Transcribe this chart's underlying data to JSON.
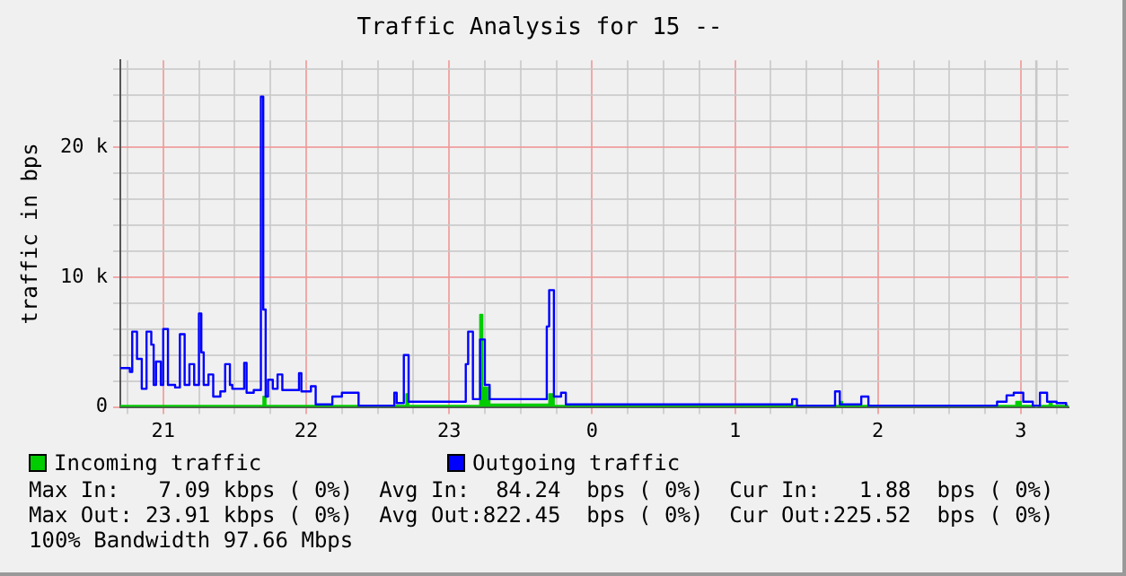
{
  "chart_data": {
    "type": "line",
    "title": "Traffic Analysis for 15 --",
    "ylabel": "traffic in bps",
    "xlim": [
      "--01-01T20:42",
      "--01-02T03:20"
    ],
    "xticks": [
      {
        "value": "--01-01T20:45",
        "label": null
      },
      {
        "value": "--01-01T21:00",
        "label": "21"
      },
      {
        "value": "--01-01T21:15",
        "label": null
      },
      {
        "value": "--01-01T21:30",
        "label": null
      },
      {
        "value": "--01-01T21:45",
        "label": null
      },
      {
        "value": "--01-01T22:00",
        "label": "22"
      },
      {
        "value": "--01-01T22:15",
        "label": null
      },
      {
        "value": "--01-01T22:30",
        "label": null
      },
      {
        "value": "--01-01T22:45",
        "label": null
      },
      {
        "value": "--01-01T23:00",
        "label": "23"
      },
      {
        "value": "--01-01T23:15",
        "label": null
      },
      {
        "value": "--01-01T23:30",
        "label": null
      },
      {
        "value": "--01-01T23:45",
        "label": null
      },
      {
        "value": "--01-02T00:00",
        "label": "0"
      },
      {
        "value": "--01-02T00:15",
        "label": null
      },
      {
        "value": "--01-02T00:30",
        "label": null
      },
      {
        "value": "--01-02T00:45",
        "label": null
      },
      {
        "value": "--01-02T01:00",
        "label": "1"
      },
      {
        "value": "--01-02T01:15",
        "label": null
      },
      {
        "value": "--01-02T01:30",
        "label": null
      },
      {
        "value": "--01-02T01:45",
        "label": null
      },
      {
        "value": "--01-02T02:00",
        "label": "2"
      },
      {
        "value": "--01-02T02:15",
        "label": null
      },
      {
        "value": "--01-02T02:30",
        "label": null
      },
      {
        "value": "--01-02T02:45",
        "label": null
      },
      {
        "value": "--01-02T03:00",
        "label": "3"
      },
      {
        "value": "--01-02T03:15",
        "label": null
      }
    ],
    "ylim": [
      0,
      26700
    ],
    "yticks": [
      0,
      {
        "value": 2000,
        "label": null
      },
      {
        "value": 4000,
        "label": null
      },
      {
        "value": 6000,
        "label": null
      },
      {
        "value": 8000,
        "label": null
      },
      {
        "value": 10000,
        "label": "10 k"
      },
      {
        "value": 12000,
        "label": null
      },
      {
        "value": 14000,
        "label": null
      },
      {
        "value": 16000,
        "label": null
      },
      {
        "value": 18000,
        "label": null
      },
      {
        "value": 20000,
        "label": "20 k"
      },
      {
        "value": 22000,
        "label": null
      },
      {
        "value": 24000,
        "label": null
      },
      {
        "value": 26000,
        "label": null
      }
    ],
    "grid": true,
    "legend": "bottom",
    "marker": "none",
    "line_style": "solid",
    "bands": [
      {
        "axis": "x",
        "from": "--01-02T03:06",
        "to": "--01-02T03:07",
        "color": "#c8c8c8"
      }
    ],
    "series": [
      {
        "name": "Incoming traffic",
        "color": "#00cc00",
        "type": "area",
        "x": [
          "--01-01T20:42",
          "--01-01T21:41",
          "--01-01T21:42",
          "--01-01T21:43",
          "--01-01T22:41",
          "--01-01T22:42",
          "--01-01T22:43",
          "--01-01T23:10",
          "--01-01T23:13",
          "--01-01T23:14",
          "--01-01T23:17",
          "--01-01T23:42",
          "--01-01T23:44",
          "--01-02T01:44",
          "--01-02T01:45",
          "--01-02T02:58",
          "--01-02T03:00",
          "--01-02T03:12",
          "--01-02T03:13",
          "--01-02T03:20"
        ],
        "values": [
          100,
          100,
          800,
          100,
          100,
          1000,
          100,
          100,
          7100,
          1500,
          200,
          1000,
          100,
          400,
          100,
          400,
          100,
          300,
          100,
          100
        ]
      },
      {
        "name": "Outgoing traffic",
        "color": "#0000ff",
        "type": "step",
        "x": [
          "--01-01T20:42",
          "--01-01T20:46",
          "--01-01T20:47",
          "--01-01T20:49",
          "--01-01T20:51",
          "--01-01T20:53",
          "--01-01T20:55",
          "--01-01T20:56",
          "--01-01T20:57",
          "--01-01T20:59",
          "--01-01T21:00",
          "--01-01T21:02",
          "--01-01T21:05",
          "--01-01T21:07",
          "--01-01T21:09",
          "--01-01T21:11",
          "--01-01T21:13",
          "--01-01T21:15",
          "--01-01T21:16",
          "--01-01T21:17",
          "--01-01T21:19",
          "--01-01T21:21",
          "--01-01T21:24",
          "--01-01T21:26",
          "--01-01T21:28",
          "--01-01T21:29",
          "--01-01T21:34",
          "--01-01T21:35",
          "--01-01T21:38",
          "--01-01T21:41",
          "--01-01T21:42",
          "--01-01T21:43",
          "--01-01T21:44",
          "--01-01T21:46",
          "--01-01T21:48",
          "--01-01T21:50",
          "--01-01T21:57",
          "--01-01T21:58",
          "--01-01T22:02",
          "--01-01T22:04",
          "--01-01T22:11",
          "--01-01T22:15",
          "--01-01T22:22",
          "--01-01T22:37",
          "--01-01T22:38",
          "--01-01T22:41",
          "--01-01T22:43",
          "--01-01T23:07",
          "--01-01T23:08",
          "--01-01T23:10",
          "--01-01T23:13",
          "--01-01T23:15",
          "--01-01T23:17",
          "--01-01T23:41",
          "--01-01T23:42",
          "--01-01T23:44",
          "--01-01T23:47",
          "--01-01T23:49",
          "--01-02T00:07",
          "--01-02T01:24",
          "--01-02T01:26",
          "--01-02T01:42",
          "--01-02T01:44",
          "--01-02T01:53",
          "--01-02T01:56",
          "--01-02T02:50",
          "--01-02T02:54",
          "--01-02T02:57",
          "--01-02T03:01",
          "--01-02T03:05",
          "--01-02T03:08",
          "--01-02T03:11",
          "--01-02T03:15",
          "--01-02T03:19"
        ],
        "values": [
          3000,
          2700,
          5800,
          3700,
          1400,
          5800,
          4800,
          1700,
          3500,
          1700,
          6000,
          1700,
          1500,
          5600,
          1700,
          3300,
          1700,
          7200,
          4200,
          1700,
          2500,
          800,
          1200,
          3300,
          1700,
          1400,
          3400,
          1100,
          1300,
          23900,
          7500,
          800,
          2100,
          1400,
          2500,
          1300,
          2600,
          1200,
          1600,
          200,
          800,
          1100,
          100,
          1100,
          300,
          4000,
          400,
          3300,
          5800,
          600,
          5200,
          1700,
          600,
          6200,
          9000,
          800,
          1100,
          200,
          200,
          600,
          100,
          1200,
          200,
          800,
          100,
          400,
          900,
          1100,
          400,
          100,
          1100,
          400,
          300,
          100
        ]
      }
    ],
    "annotations": [
      "Max In:   7.09 kbps ( 0%)  Avg In:  84.24  bps ( 0%)  Cur In:   1.88  bps ( 0%)",
      "Max Out: 23.91 kbps ( 0%)  Avg Out:822.45  bps ( 0%)  Cur Out:225.52  bps ( 0%)",
      "100% Bandwidth 97.66 Mbps"
    ]
  }
}
